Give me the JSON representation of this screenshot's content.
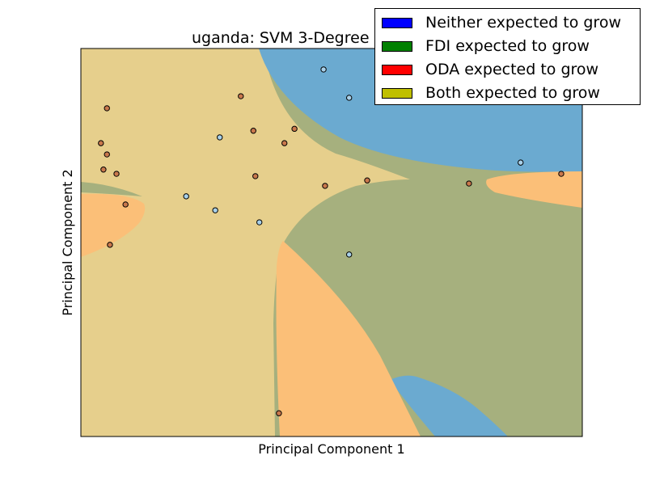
{
  "chart_data": {
    "type": "scatter",
    "title": "uganda: SVM 3-Degree",
    "xlabel": "Principal Component 1",
    "ylabel": "Principal Component 2",
    "xlim": [
      0,
      1
    ],
    "ylim": [
      0,
      1
    ],
    "grid": false,
    "legend_placement": "top-right",
    "regions": [
      {
        "class": "Both expected to grow",
        "color": "#e6cf8c"
      },
      {
        "class": "FDI expected to grow",
        "color": "#a6b07e"
      },
      {
        "class": "Neither expected to grow",
        "color": "#6baad0"
      },
      {
        "class": "ODA expected to grow",
        "color": "#fbbf78"
      }
    ],
    "legend": [
      {
        "label": "Neither expected to grow",
        "color": "#0000ff"
      },
      {
        "label": "FDI expected to grow",
        "color": "#008000"
      },
      {
        "label": "ODA expected to grow",
        "color": "#ff0000"
      },
      {
        "label": "Both expected to grow",
        "color": "#bfbf00"
      }
    ],
    "points": [
      {
        "x": 0.484,
        "y": 0.946,
        "color": "#a9d1ea"
      },
      {
        "x": 0.535,
        "y": 0.873,
        "color": "#a9d1ea"
      },
      {
        "x": 0.052,
        "y": 0.846,
        "color": "#c9784c"
      },
      {
        "x": 0.319,
        "y": 0.877,
        "color": "#c9784c"
      },
      {
        "x": 0.344,
        "y": 0.788,
        "color": "#c9784c"
      },
      {
        "x": 0.426,
        "y": 0.793,
        "color": "#c9784c"
      },
      {
        "x": 0.406,
        "y": 0.756,
        "color": "#c9784c"
      },
      {
        "x": 0.277,
        "y": 0.771,
        "color": "#a9d1ea"
      },
      {
        "x": 0.04,
        "y": 0.756,
        "color": "#c9784c"
      },
      {
        "x": 0.052,
        "y": 0.727,
        "color": "#c9784c"
      },
      {
        "x": 0.045,
        "y": 0.688,
        "color": "#c9784c"
      },
      {
        "x": 0.071,
        "y": 0.677,
        "color": "#c9784c"
      },
      {
        "x": 0.348,
        "y": 0.671,
        "color": "#c9784c"
      },
      {
        "x": 0.571,
        "y": 0.66,
        "color": "#c9784c"
      },
      {
        "x": 0.487,
        "y": 0.646,
        "color": "#c9784c"
      },
      {
        "x": 0.774,
        "y": 0.652,
        "color": "#c9784c"
      },
      {
        "x": 0.877,
        "y": 0.706,
        "color": "#a9d1ea"
      },
      {
        "x": 0.958,
        "y": 0.677,
        "color": "#c9784c"
      },
      {
        "x": 0.21,
        "y": 0.619,
        "color": "#a9d1ea"
      },
      {
        "x": 0.268,
        "y": 0.583,
        "color": "#a9d1ea"
      },
      {
        "x": 0.089,
        "y": 0.598,
        "color": "#c9784c"
      },
      {
        "x": 0.356,
        "y": 0.552,
        "color": "#a9d1ea"
      },
      {
        "x": 0.058,
        "y": 0.494,
        "color": "#c9784c"
      },
      {
        "x": 0.535,
        "y": 0.469,
        "color": "#a9d1ea"
      },
      {
        "x": 0.395,
        "y": 0.06,
        "color": "#c9784c"
      }
    ]
  }
}
